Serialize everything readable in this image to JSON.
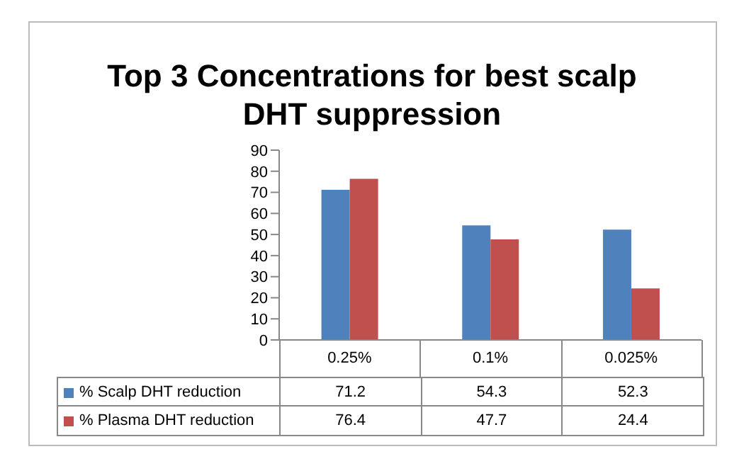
{
  "chart_data": {
    "type": "bar",
    "title": "Top 3 Concentrations for best scalp DHT suppression",
    "categories": [
      "0.25%",
      "0.1%",
      "0.025%"
    ],
    "series": [
      {
        "name": "% Scalp DHT reduction",
        "color": "#4f81bd",
        "values": [
          71.2,
          54.3,
          52.3
        ]
      },
      {
        "name": "% Plasma DHT reduction",
        "color": "#c0504d",
        "values": [
          76.4,
          47.7,
          24.4
        ]
      }
    ],
    "ylim": [
      0,
      90
    ],
    "yticks": [
      0,
      10,
      20,
      30,
      40,
      50,
      60,
      70,
      80,
      90
    ],
    "grid": false,
    "legend": "bottom",
    "data_labels": true
  }
}
